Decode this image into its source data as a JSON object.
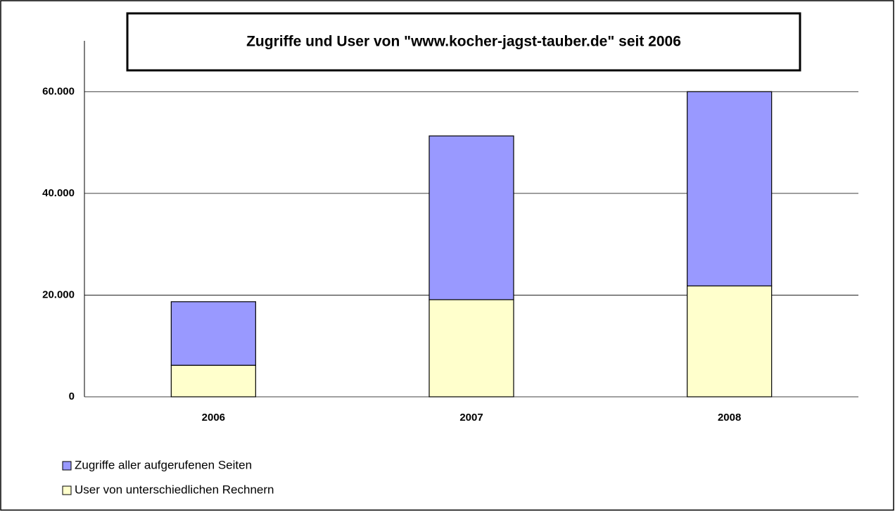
{
  "chart_data": {
    "type": "stacked_bar",
    "title": "Zugriffe und User von \"www.kocher-jagst-tauber.de\" seit 2006",
    "categories": [
      "2006",
      "2007",
      "2008"
    ],
    "series": [
      {
        "name": "User von unterschiedlichen Rechnern",
        "color": "#ffffcc",
        "values": [
          6200,
          19100,
          21800
        ]
      },
      {
        "name": "Zugriffe aller aufgerufenen Seiten",
        "color": "#9999ff",
        "values": [
          12500,
          32200,
          38200
        ]
      }
    ],
    "ylim": [
      0,
      70000
    ],
    "yticks": [
      0,
      {
        "value": 20000,
        "label": "20.000"
      },
      {
        "value": 40000,
        "label": "40.000"
      },
      {
        "value": 60000,
        "label": "60.000"
      }
    ],
    "grid": true
  }
}
